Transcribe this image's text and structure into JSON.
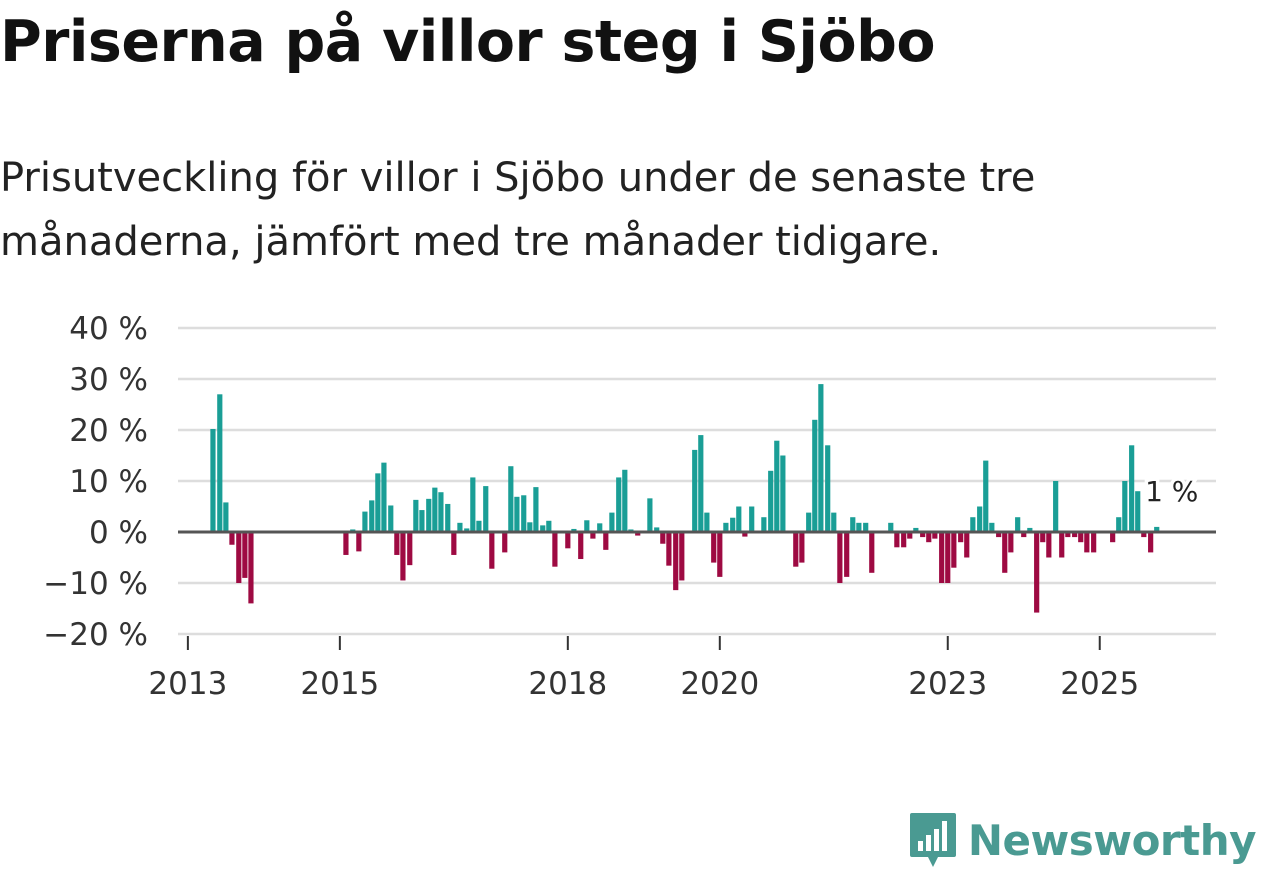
{
  "title": "Priserna på villor steg i Sjöbo",
  "subtitle": "Prisutveckling för villor i Sjöbo under de senaste tre månaderna, jämfört med tre månader tidigare.",
  "brand": {
    "name": "Newsworthy",
    "color": "#4a9a92"
  },
  "colors": {
    "positive": "#1a9e96",
    "negative": "#9e0a42",
    "grid": "#dddddd",
    "zero_line": "#555555"
  },
  "chart_data": {
    "type": "bar",
    "title": "Priserna på villor steg i Sjöbo",
    "ylabel": "",
    "xlabel": "",
    "ylim": [
      -20,
      40
    ],
    "y_ticks": [
      40,
      30,
      20,
      10,
      0,
      -10,
      -20
    ],
    "y_tick_labels": [
      "40 %",
      "30 %",
      "20 %",
      "10 %",
      "0 %",
      "−10 %",
      "−20 %"
    ],
    "x_range": [
      2012.87,
      2026.53
    ],
    "x_ticks": [
      {
        "value": 2013.0,
        "label": "2013"
      },
      {
        "value": 2015.0,
        "label": "2015"
      },
      {
        "value": 2018.0,
        "label": "2018"
      },
      {
        "value": 2020.0,
        "label": "2020"
      },
      {
        "value": 2023.0,
        "label": "2023"
      },
      {
        "value": 2025.0,
        "label": "2025"
      }
    ],
    "annotation": {
      "text": "1 %",
      "x": 2025.75,
      "value": 1
    },
    "series": [
      {
        "name": "Prisutveckling",
        "points": [
          {
            "x": 2013.33,
            "value": 20.2
          },
          {
            "x": 2013.42,
            "value": 27.0
          },
          {
            "x": 2013.5,
            "value": 5.8
          },
          {
            "x": 2013.58,
            "value": -2.5
          },
          {
            "x": 2013.67,
            "value": -10.0
          },
          {
            "x": 2013.75,
            "value": -9.0
          },
          {
            "x": 2013.83,
            "value": -14.0
          },
          {
            "x": 2015.08,
            "value": -4.5
          },
          {
            "x": 2015.17,
            "value": 0.5
          },
          {
            "x": 2015.25,
            "value": -3.8
          },
          {
            "x": 2015.33,
            "value": 4.0
          },
          {
            "x": 2015.42,
            "value": 6.2
          },
          {
            "x": 2015.5,
            "value": 11.5
          },
          {
            "x": 2015.58,
            "value": 13.6
          },
          {
            "x": 2015.67,
            "value": 5.2
          },
          {
            "x": 2015.75,
            "value": -4.5
          },
          {
            "x": 2015.83,
            "value": -9.5
          },
          {
            "x": 2015.92,
            "value": -6.5
          },
          {
            "x": 2016.0,
            "value": 6.3
          },
          {
            "x": 2016.08,
            "value": 4.3
          },
          {
            "x": 2016.17,
            "value": 6.5
          },
          {
            "x": 2016.25,
            "value": 8.7
          },
          {
            "x": 2016.33,
            "value": 7.8
          },
          {
            "x": 2016.42,
            "value": 5.5
          },
          {
            "x": 2016.5,
            "value": -4.5
          },
          {
            "x": 2016.58,
            "value": 1.8
          },
          {
            "x": 2016.67,
            "value": 0.7
          },
          {
            "x": 2016.75,
            "value": 10.7
          },
          {
            "x": 2016.83,
            "value": 2.2
          },
          {
            "x": 2016.92,
            "value": 9.0
          },
          {
            "x": 2017.0,
            "value": -7.2
          },
          {
            "x": 2017.17,
            "value": -4.0
          },
          {
            "x": 2017.25,
            "value": 12.9
          },
          {
            "x": 2017.33,
            "value": 6.9
          },
          {
            "x": 2017.42,
            "value": 7.2
          },
          {
            "x": 2017.5,
            "value": 1.9
          },
          {
            "x": 2017.58,
            "value": 8.8
          },
          {
            "x": 2017.67,
            "value": 1.3
          },
          {
            "x": 2017.75,
            "value": 2.2
          },
          {
            "x": 2017.83,
            "value": -6.8
          },
          {
            "x": 2018.0,
            "value": -3.2
          },
          {
            "x": 2018.08,
            "value": 0.6
          },
          {
            "x": 2018.17,
            "value": -5.3
          },
          {
            "x": 2018.25,
            "value": 2.3
          },
          {
            "x": 2018.33,
            "value": -1.3
          },
          {
            "x": 2018.42,
            "value": 1.7
          },
          {
            "x": 2018.5,
            "value": -3.5
          },
          {
            "x": 2018.58,
            "value": 3.8
          },
          {
            "x": 2018.67,
            "value": 10.7
          },
          {
            "x": 2018.75,
            "value": 12.2
          },
          {
            "x": 2018.83,
            "value": 0.5
          },
          {
            "x": 2018.92,
            "value": -0.7
          },
          {
            "x": 2019.08,
            "value": 6.6
          },
          {
            "x": 2019.17,
            "value": 0.9
          },
          {
            "x": 2019.25,
            "value": -2.3
          },
          {
            "x": 2019.33,
            "value": -6.6
          },
          {
            "x": 2019.42,
            "value": -11.4
          },
          {
            "x": 2019.5,
            "value": -9.5
          },
          {
            "x": 2019.67,
            "value": 16.1
          },
          {
            "x": 2019.75,
            "value": 19.0
          },
          {
            "x": 2019.83,
            "value": 3.8
          },
          {
            "x": 2019.92,
            "value": -6.0
          },
          {
            "x": 2020.0,
            "value": -8.8
          },
          {
            "x": 2020.08,
            "value": 1.8
          },
          {
            "x": 2020.17,
            "value": 2.8
          },
          {
            "x": 2020.25,
            "value": 5.0
          },
          {
            "x": 2020.33,
            "value": -0.9
          },
          {
            "x": 2020.42,
            "value": 5.0
          },
          {
            "x": 2020.58,
            "value": 2.9
          },
          {
            "x": 2020.67,
            "value": 12.0
          },
          {
            "x": 2020.75,
            "value": 17.9
          },
          {
            "x": 2020.83,
            "value": 15.0
          },
          {
            "x": 2021.0,
            "value": -6.8
          },
          {
            "x": 2021.08,
            "value": -6.0
          },
          {
            "x": 2021.17,
            "value": 3.8
          },
          {
            "x": 2021.25,
            "value": 22.0
          },
          {
            "x": 2021.33,
            "value": 29.0
          },
          {
            "x": 2021.42,
            "value": 17.0
          },
          {
            "x": 2021.5,
            "value": 3.8
          },
          {
            "x": 2021.58,
            "value": -10.0
          },
          {
            "x": 2021.67,
            "value": -8.8
          },
          {
            "x": 2021.75,
            "value": 2.9
          },
          {
            "x": 2021.83,
            "value": 1.8
          },
          {
            "x": 2021.92,
            "value": 1.8
          },
          {
            "x": 2022.0,
            "value": -8.0
          },
          {
            "x": 2022.25,
            "value": 1.8
          },
          {
            "x": 2022.33,
            "value": -3.0
          },
          {
            "x": 2022.42,
            "value": -3.0
          },
          {
            "x": 2022.5,
            "value": -1.3
          },
          {
            "x": 2022.58,
            "value": 0.8
          },
          {
            "x": 2022.67,
            "value": -1.0
          },
          {
            "x": 2022.75,
            "value": -2.0
          },
          {
            "x": 2022.83,
            "value": -1.3
          },
          {
            "x": 2022.92,
            "value": -10.0
          },
          {
            "x": 2023.0,
            "value": -10.0
          },
          {
            "x": 2023.08,
            "value": -7.0
          },
          {
            "x": 2023.17,
            "value": -2.0
          },
          {
            "x": 2023.25,
            "value": -5.0
          },
          {
            "x": 2023.33,
            "value": 2.9
          },
          {
            "x": 2023.42,
            "value": 5.0
          },
          {
            "x": 2023.5,
            "value": 14.0
          },
          {
            "x": 2023.58,
            "value": 1.8
          },
          {
            "x": 2023.67,
            "value": -1.0
          },
          {
            "x": 2023.75,
            "value": -8.0
          },
          {
            "x": 2023.83,
            "value": -4.0
          },
          {
            "x": 2023.92,
            "value": 2.9
          },
          {
            "x": 2024.0,
            "value": -1.0
          },
          {
            "x": 2024.08,
            "value": 0.8
          },
          {
            "x": 2024.17,
            "value": -15.8
          },
          {
            "x": 2024.25,
            "value": -2.0
          },
          {
            "x": 2024.33,
            "value": -5.0
          },
          {
            "x": 2024.42,
            "value": 10.0
          },
          {
            "x": 2024.5,
            "value": -5.0
          },
          {
            "x": 2024.58,
            "value": -1.0
          },
          {
            "x": 2024.67,
            "value": -1.0
          },
          {
            "x": 2024.75,
            "value": -2.0
          },
          {
            "x": 2024.83,
            "value": -4.0
          },
          {
            "x": 2024.92,
            "value": -4.0
          },
          {
            "x": 2025.17,
            "value": -2.0
          },
          {
            "x": 2025.25,
            "value": 2.9
          },
          {
            "x": 2025.33,
            "value": 10.0
          },
          {
            "x": 2025.42,
            "value": 17.0
          },
          {
            "x": 2025.5,
            "value": 8.0
          },
          {
            "x": 2025.58,
            "value": -1.0
          },
          {
            "x": 2025.67,
            "value": -4.0
          },
          {
            "x": 2025.75,
            "value": 1.0
          }
        ]
      }
    ]
  }
}
